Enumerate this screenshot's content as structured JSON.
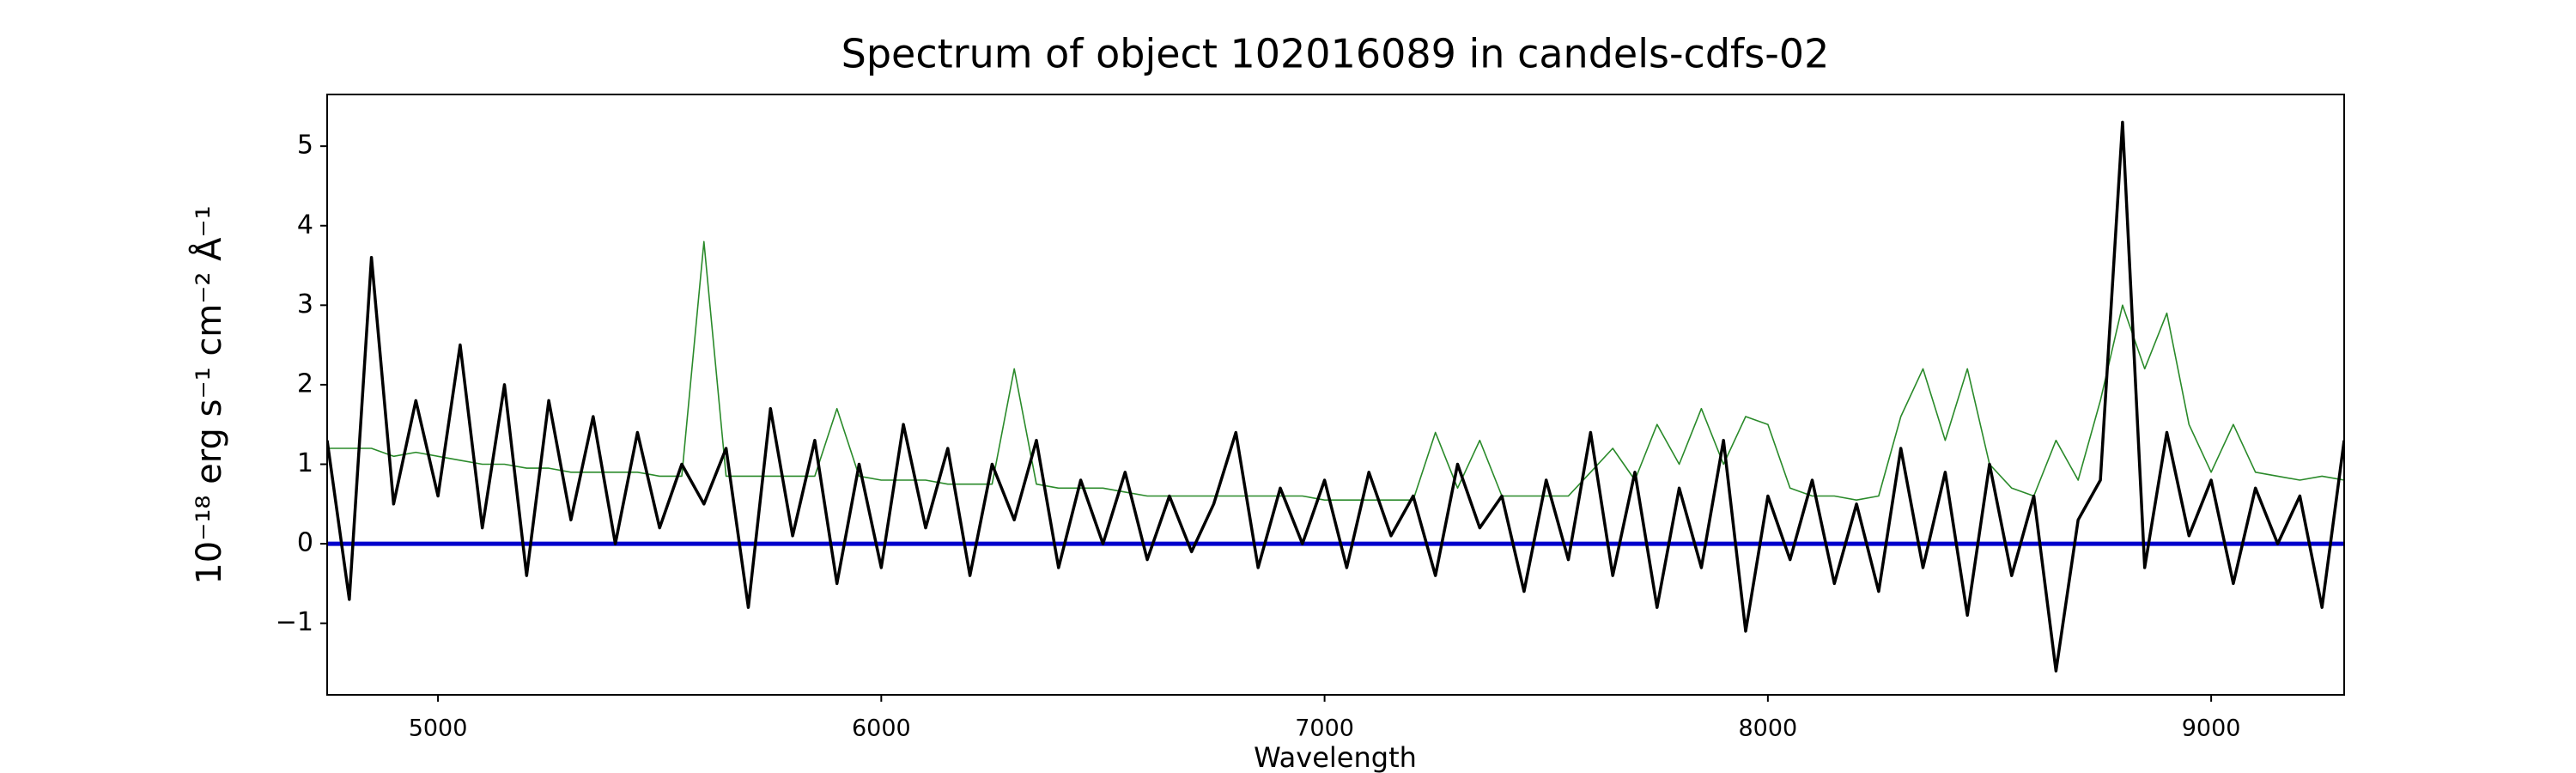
{
  "chart_data": {
    "type": "line",
    "title": "Spectrum of object 102016089 in candels-cdfs-02",
    "x_label": "Wavelength",
    "y_label": "10⁻¹⁸ erg s⁻¹ cm⁻² Å⁻¹",
    "x": [
      4750,
      4800,
      4850,
      4900,
      4950,
      5000,
      5050,
      5100,
      5150,
      5200,
      5250,
      5300,
      5350,
      5400,
      5450,
      5500,
      5550,
      5600,
      5650,
      5700,
      5750,
      5800,
      5850,
      5900,
      5950,
      6000,
      6050,
      6100,
      6150,
      6200,
      6250,
      6300,
      6350,
      6400,
      6450,
      6500,
      6550,
      6600,
      6650,
      6700,
      6750,
      6800,
      6850,
      6900,
      6950,
      7000,
      7050,
      7100,
      7150,
      7200,
      7250,
      7300,
      7350,
      7400,
      7450,
      7500,
      7550,
      7600,
      7650,
      7700,
      7750,
      7800,
      7850,
      7900,
      7950,
      8000,
      8050,
      8100,
      8150,
      8200,
      8250,
      8300,
      8350,
      8400,
      8450,
      8500,
      8550,
      8600,
      8650,
      8700,
      8750,
      8800,
      8850,
      8900,
      8950,
      9000,
      9050,
      9100,
      9150,
      9200,
      9250,
      9300
    ],
    "series": [
      {
        "color": "#2a8a2a",
        "values": [
          1.2,
          1.2,
          1.2,
          1.1,
          1.15,
          1.1,
          1.05,
          1.0,
          1.0,
          0.95,
          0.95,
          0.9,
          0.9,
          0.9,
          0.9,
          0.85,
          0.85,
          3.8,
          0.85,
          0.85,
          0.85,
          0.85,
          0.85,
          1.7,
          0.85,
          0.8,
          0.8,
          0.8,
          0.75,
          0.75,
          0.75,
          2.2,
          0.75,
          0.7,
          0.7,
          0.7,
          0.65,
          0.6,
          0.6,
          0.6,
          0.6,
          0.6,
          0.6,
          0.6,
          0.6,
          0.55,
          0.55,
          0.55,
          0.55,
          0.55,
          1.4,
          0.7,
          1.3,
          0.6,
          0.6,
          0.6,
          0.6,
          0.9,
          1.2,
          0.8,
          1.5,
          1.0,
          1.7,
          1.0,
          1.6,
          1.5,
          0.7,
          0.6,
          0.6,
          0.55,
          0.6,
          1.6,
          2.2,
          1.3,
          2.2,
          1.0,
          0.7,
          0.6,
          1.3,
          0.8,
          1.8,
          3.0,
          2.2,
          2.9,
          1.5,
          0.9,
          1.5,
          0.9,
          0.85,
          0.8,
          0.85,
          0.8
        ]
      },
      {
        "color": "#000000",
        "values": [
          1.3,
          -0.7,
          3.6,
          0.5,
          1.8,
          0.6,
          2.5,
          0.2,
          2.0,
          -0.4,
          1.8,
          0.3,
          1.6,
          0.0,
          1.4,
          0.2,
          1.0,
          0.5,
          1.2,
          -0.8,
          1.7,
          0.1,
          1.3,
          -0.5,
          1.0,
          -0.3,
          1.5,
          0.2,
          1.2,
          -0.4,
          1.0,
          0.3,
          1.3,
          -0.3,
          0.8,
          0.0,
          0.9,
          -0.2,
          0.6,
          -0.1,
          0.5,
          1.4,
          -0.3,
          0.7,
          0.0,
          0.8,
          -0.3,
          0.9,
          0.1,
          0.6,
          -0.4,
          1.0,
          0.2,
          0.6,
          -0.6,
          0.8,
          -0.2,
          1.4,
          -0.4,
          0.9,
          -0.8,
          0.7,
          -0.3,
          1.3,
          -1.1,
          0.6,
          -0.2,
          0.8,
          -0.5,
          0.5,
          -0.6,
          1.2,
          -0.3,
          0.9,
          -0.9,
          1.0,
          -0.4,
          0.6,
          -1.6,
          0.3,
          0.8,
          5.3,
          -0.3,
          1.4,
          0.1,
          0.8,
          -0.5,
          0.7,
          0.0,
          0.6,
          -0.8,
          1.3
        ]
      }
    ],
    "reference_line": {
      "value": 0,
      "color": "#0000cc"
    },
    "xlim": [
      4750,
      9300
    ],
    "ylim": [
      -1.9,
      5.65
    ],
    "xticks": [
      5000,
      6000,
      7000,
      8000,
      9000
    ],
    "yticks": [
      {
        "value": -1,
        "label": "−1"
      },
      0,
      1,
      2,
      3,
      4,
      5
    ]
  }
}
